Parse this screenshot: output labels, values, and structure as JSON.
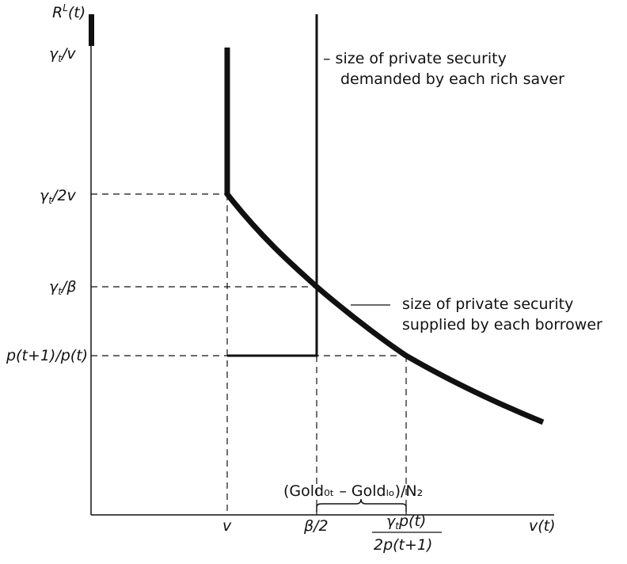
{
  "axes": {
    "y_label": "Rᴸ(t)",
    "x_label": "v(t)"
  },
  "y_ticks": {
    "top": "γt/v",
    "half": "γt/2v",
    "beta": "γt/β",
    "price": "p(t+1)/p(t)"
  },
  "x_ticks": {
    "v": "v",
    "beta_half": "β/2",
    "frac_num": "γtp(t)",
    "frac_den": "2p(t+1)"
  },
  "annotations": {
    "demand_line1": "– size of private security",
    "demand_line2": "demanded by each rich saver",
    "supply_line1": "size of private security",
    "supply_line2": "supplied by each borrower",
    "gold": "(Gold₀ₜ – Goldₗₒ)/N₂"
  }
}
